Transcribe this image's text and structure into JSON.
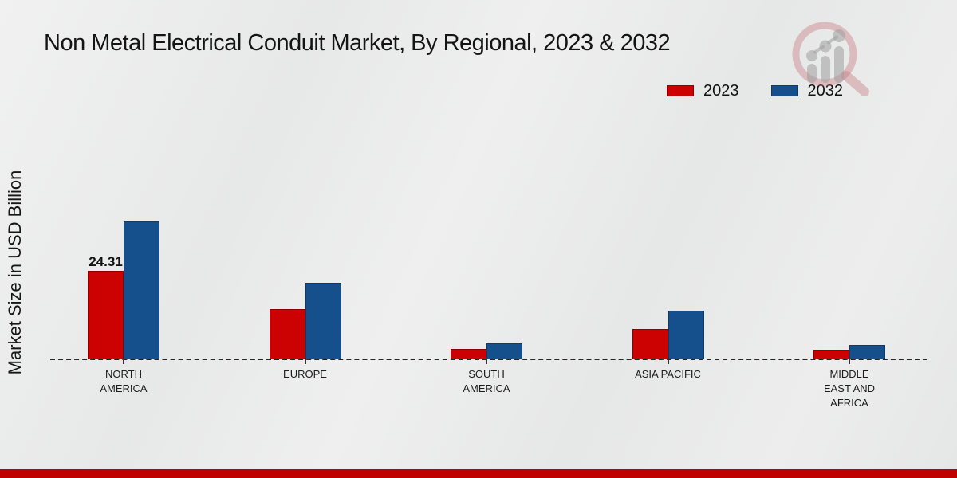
{
  "header": {
    "title": "Non Metal Electrical Conduit Market, By Regional, 2023 & 2032"
  },
  "axes": {
    "ylabel": "Market Size in USD Billion"
  },
  "legend": {
    "items": [
      {
        "label": "2023",
        "color": "#cc0101",
        "border": "#8f0000"
      },
      {
        "label": "2032",
        "color": "#15508d",
        "border": "#0d3a6b"
      }
    ]
  },
  "icons": {
    "logo": "magnifier-bar-chart-watermark"
  },
  "colors": {
    "series_2023": "#cc0101",
    "series_2032": "#15508d",
    "bottom_band": "#c00101",
    "baseline": "#252525",
    "background": "#eaeaea"
  },
  "chart_data": {
    "type": "bar",
    "title": "Non Metal Electrical Conduit Market, By Regional, 2023 & 2032",
    "xlabel": "",
    "ylabel": "Market Size in USD Billion",
    "categories": [
      "NORTH AMERICA",
      "EUROPE",
      "SOUTH AMERICA",
      "ASIA PACIFIC",
      "MIDDLE EAST AND AFRICA"
    ],
    "series": [
      {
        "name": "2023",
        "color": "#cc0101",
        "border": "#8f0000",
        "values": [
          24.31,
          13.8,
          2.9,
          8.3,
          2.6
        ]
      },
      {
        "name": "2032",
        "color": "#15508d",
        "border": "#0d3a6b",
        "values": [
          37.9,
          21.0,
          4.4,
          13.3,
          3.9
        ]
      }
    ],
    "annotations": [
      {
        "series": "2023",
        "category": "NORTH AMERICA",
        "text": "24.31"
      }
    ],
    "ylim": [
      0,
      40
    ],
    "grid": false,
    "y_axis_ticks_visible": false,
    "baseline_style": "dashed",
    "legend_position": "top-right"
  }
}
